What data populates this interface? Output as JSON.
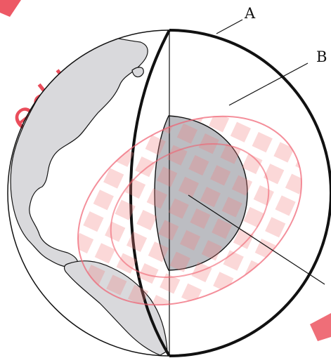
{
  "diagram": {
    "labels": {
      "a": "A",
      "b": "B"
    }
  },
  "watermark": {
    "text": "ed by",
    "color": "#e8303f"
  },
  "colors": {
    "continent": "#d9d9dc",
    "core": "#bcbdc2",
    "outline": "#111111"
  }
}
